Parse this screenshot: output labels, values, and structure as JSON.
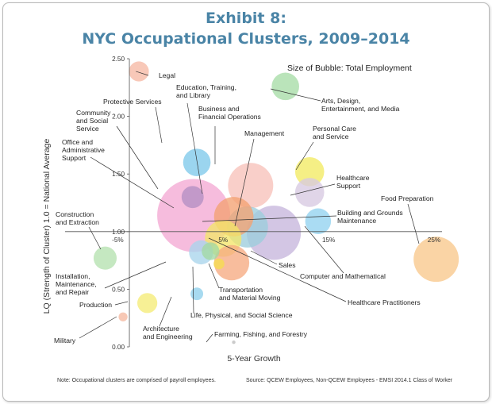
{
  "title_line1": "Exhibit 8:",
  "title_line2": "NYC Occupational Clusters, 2009–2014",
  "size_legend": "Size of Bubble: Total Employment",
  "note_left": "Note: Occupational clusters are comprised of payroll employees.",
  "note_right": "Source: QCEW Employees, Non-QCEW Employees - EMSI 2014.1 Class of Worker",
  "chart_data": {
    "type": "scatter",
    "xlabel": "5-Year Growth",
    "ylabel": "LQ (Strength of Cluster) 1.0 = National Average",
    "xlim": [
      -10,
      25
    ],
    "ylim": [
      0,
      2.5
    ],
    "x_ticks": [
      {
        "value": -5,
        "label": "-5%"
      },
      {
        "value": 5,
        "label": "5%"
      },
      {
        "value": 15,
        "label": "15%"
      },
      {
        "value": 25,
        "label": "25%"
      }
    ],
    "y_ticks": [
      {
        "value": 0,
        "label": "0.00"
      },
      {
        "value": 0.5,
        "label": "0.50"
      },
      {
        "value": 1.0,
        "label": "1.00"
      },
      {
        "value": 1.5,
        "label": "1.50"
      },
      {
        "value": 2.0,
        "label": "2.00"
      },
      {
        "value": 2.5,
        "label": "2.50"
      }
    ],
    "points": [
      {
        "name": "Office and Administrative Support",
        "x": 2.2,
        "y": 1.14,
        "size": 600000,
        "color": "#f3a9d3"
      },
      {
        "name": "Sales",
        "x": 9.8,
        "y": 0.99,
        "size": 330000,
        "color": "#c7b6dd"
      },
      {
        "name": "Business and Financial Operations",
        "x": 7.6,
        "y": 1.4,
        "size": 230000,
        "color": "#f7c2ba"
      },
      {
        "name": "Management",
        "x": 7.3,
        "y": 1.04,
        "size": 190000,
        "color": "#9ccddc"
      },
      {
        "name": "Education, Training, and Library",
        "x": 6.0,
        "y": 1.13,
        "size": 175000,
        "color": "#f3a272"
      },
      {
        "name": "Food Preparation",
        "x": 25.2,
        "y": 0.76,
        "size": 230000,
        "color": "#f9c88c"
      },
      {
        "name": "Personal Care and Service",
        "x": 13.2,
        "y": 1.52,
        "size": 95000,
        "color": "#f2ea63"
      },
      {
        "name": "Healthcare Support",
        "x": 13.2,
        "y": 1.34,
        "size": 95000,
        "color": "#d7c9e2"
      },
      {
        "name": "Transportation and Material Moving",
        "x": 5.8,
        "y": 0.73,
        "size": 140000,
        "color": "#f6ab82"
      },
      {
        "name": "Healthcare Practitioners",
        "x": 5.0,
        "y": 0.94,
        "size": 150000,
        "color": "#f3e56a"
      },
      {
        "name": "Arts, Design, Entertainment, and Media",
        "x": 10.9,
        "y": 2.26,
        "size": 85000,
        "color": "#a6dda6"
      },
      {
        "name": "Protective Services",
        "x": 2.5,
        "y": 1.6,
        "size": 85000,
        "color": "#7fc9ea"
      },
      {
        "name": "Building and Grounds Maintenance",
        "x": 14.0,
        "y": 1.09,
        "size": 75000,
        "color": "#92d2ef"
      },
      {
        "name": "Community and Social Service",
        "x": 2.1,
        "y": 1.3,
        "size": 55000,
        "color": "#b48fc3"
      },
      {
        "name": "Computer and Mathematical",
        "x": 2.9,
        "y": 0.82,
        "size": 65000,
        "color": "#a9d5ec"
      },
      {
        "name": "Construction and Extraction",
        "x": -6.2,
        "y": 0.77,
        "size": 60000,
        "color": "#b5e1b0"
      },
      {
        "name": "Legal",
        "x": -3.0,
        "y": 2.39,
        "size": 45000,
        "color": "#f6b9a4"
      },
      {
        "name": "Installation, Maintenance, and Repair",
        "x": 3.8,
        "y": 0.83,
        "size": 35000,
        "color": "#a3d9a3"
      },
      {
        "name": "Production",
        "x": -2.2,
        "y": 0.38,
        "size": 45000,
        "color": "#f5ec77"
      },
      {
        "name": "Architecture and Engineering",
        "x": 2.5,
        "y": 0.46,
        "size": 18000,
        "color": "#8ed0ec"
      },
      {
        "name": "Military",
        "x": -4.5,
        "y": 0.26,
        "size": 9000,
        "color": "#f5b9a0"
      },
      {
        "name": "Life, Physical, and Social Science",
        "x": 4.6,
        "y": 0.72,
        "size": 13000,
        "color": "#f5dc50"
      },
      {
        "name": "Farming, Fishing, and Forestry",
        "x": 6.0,
        "y": 0.04,
        "size": 900,
        "color": "#bdbdbd"
      }
    ]
  }
}
